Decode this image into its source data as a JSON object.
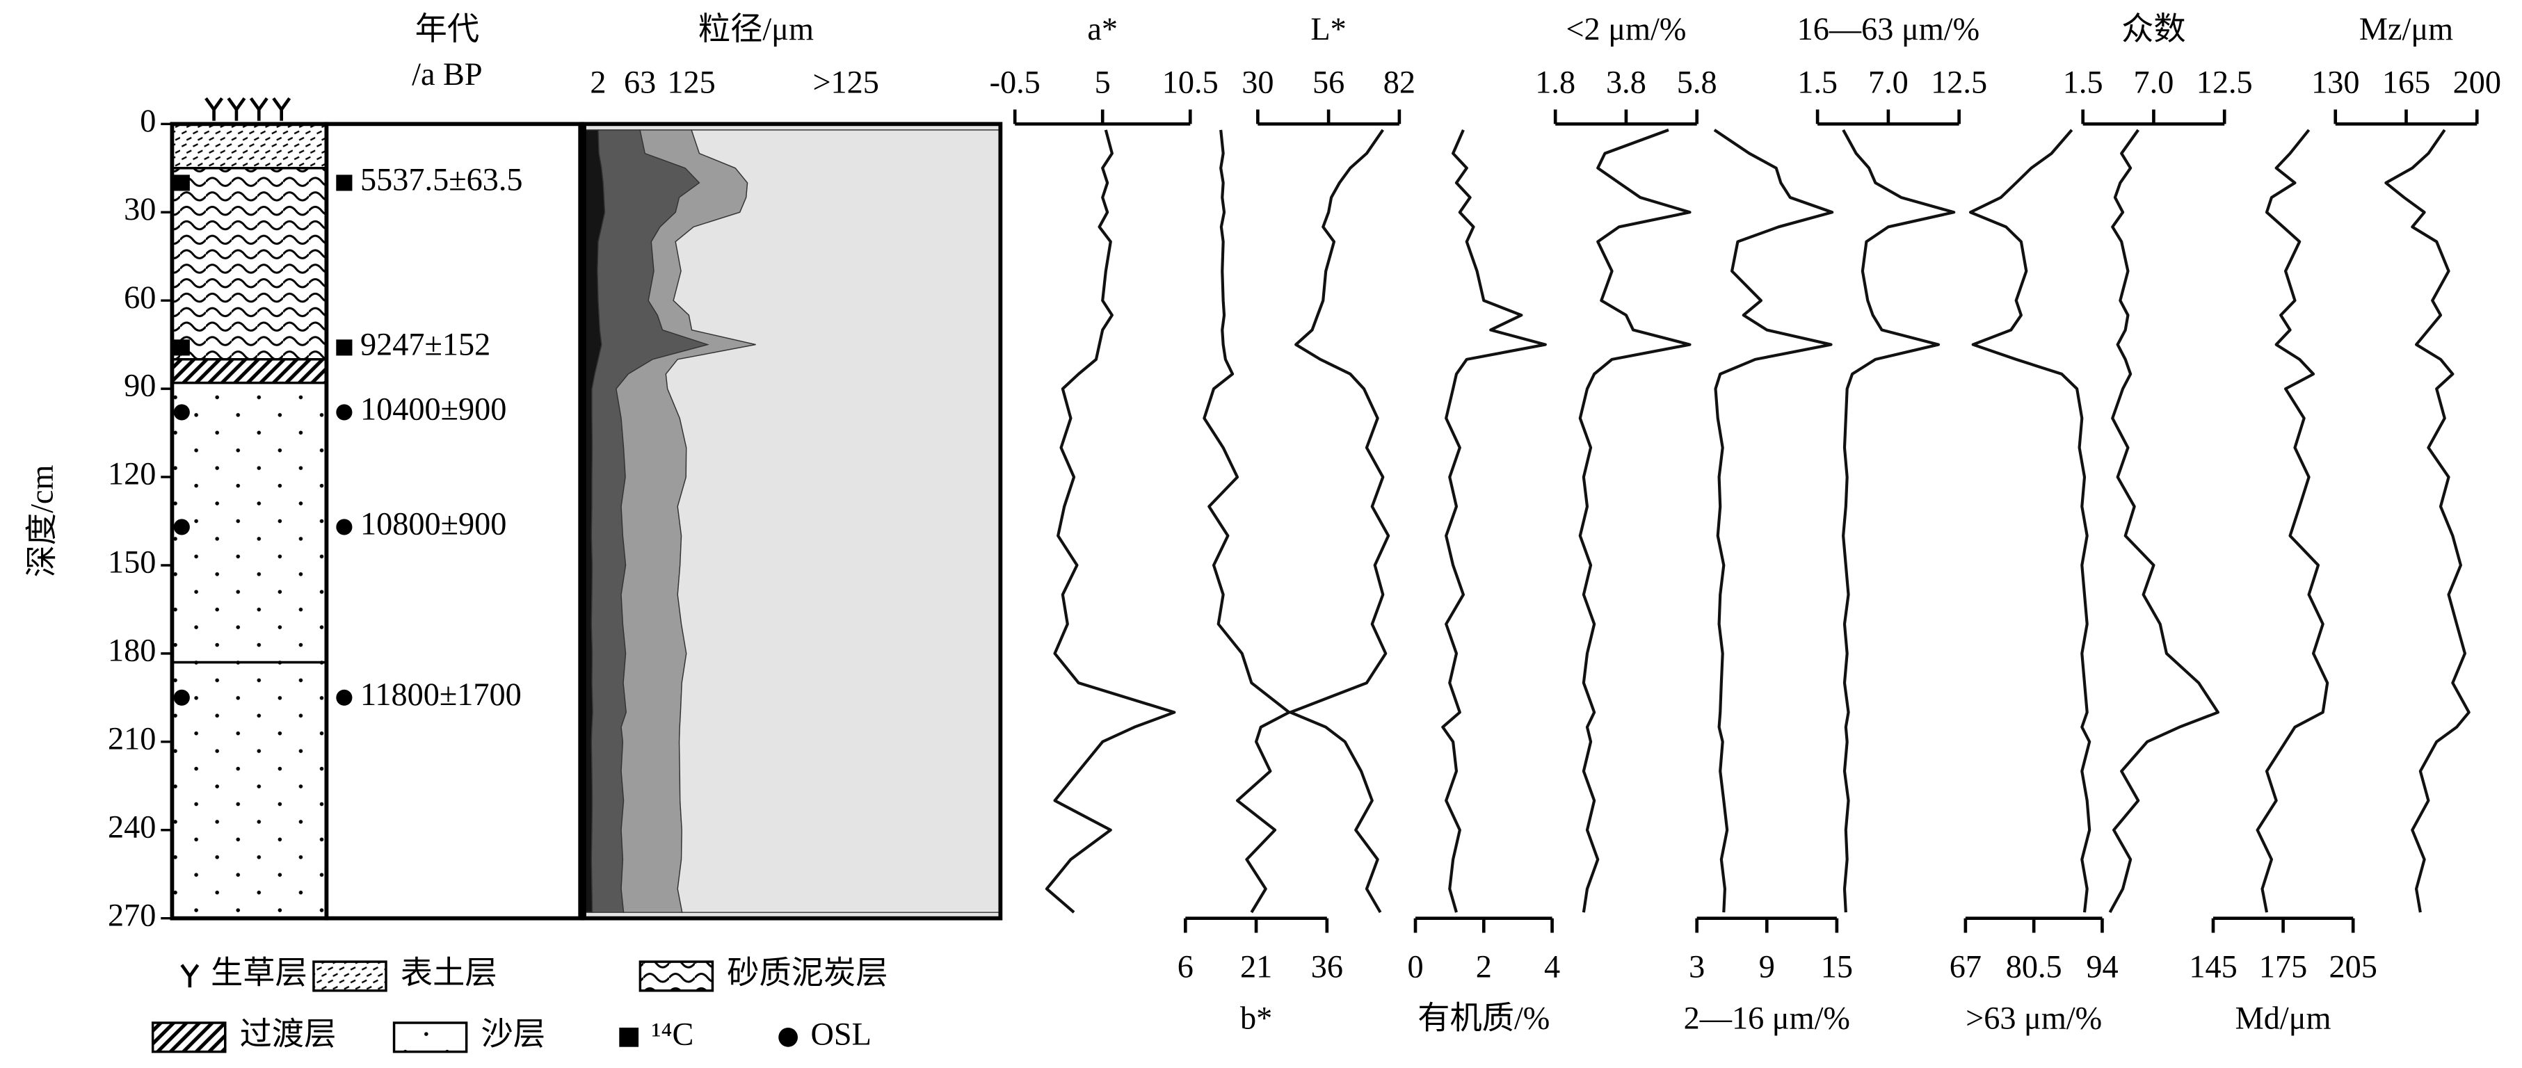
{
  "chart_data": [
    {
      "type": "lithology",
      "y_label": "深度/cm",
      "ylim": [
        270,
        0
      ],
      "yticks": [
        0,
        30,
        60,
        90,
        120,
        150,
        180,
        210,
        240,
        270
      ],
      "surface": "grass",
      "layers": [
        {
          "pattern": "topsoil",
          "top": 0,
          "bottom": 15
        },
        {
          "pattern": "peat",
          "top": 15,
          "bottom": 80
        },
        {
          "pattern": "transition",
          "top": 80,
          "bottom": 88
        },
        {
          "pattern": "sand",
          "top": 88,
          "bottom": 183
        },
        {
          "pattern": "sand",
          "top": 183,
          "bottom": 270
        }
      ],
      "legend": [
        {
          "label": "生草层",
          "symbol": "grass"
        },
        {
          "label": "表土层",
          "symbol": "topsoil"
        },
        {
          "label": "砂质泥炭层",
          "symbol": "peat"
        },
        {
          "label": "过渡层",
          "symbol": "transition"
        },
        {
          "label": "沙层",
          "symbol": "sand"
        },
        {
          "label": "¹⁴C",
          "symbol": "square"
        },
        {
          "label": "OSL",
          "symbol": "circle"
        }
      ]
    },
    {
      "type": "dates",
      "title": "年代",
      "subtitle": "/a BP",
      "ylim": [
        270,
        0
      ],
      "samples": [
        {
          "symbol": "square",
          "depth": 20,
          "label": "5537.5±63.5"
        },
        {
          "symbol": "square",
          "depth": 76,
          "label": "9247±152"
        },
        {
          "symbol": "circle",
          "depth": 98,
          "label": "10400±900"
        },
        {
          "symbol": "circle",
          "depth": 137,
          "label": "10800±900"
        },
        {
          "symbol": "circle",
          "depth": 195,
          "label": "11800±1700"
        }
      ]
    },
    {
      "type": "stacked-area",
      "title": "粒径/μm",
      "xlim": [
        0,
        100
      ],
      "ylim": [
        270,
        0
      ],
      "y": [
        2,
        10,
        15,
        20,
        25,
        30,
        35,
        40,
        50,
        60,
        65,
        70,
        75,
        80,
        85,
        90,
        100,
        110,
        120,
        130,
        140,
        150,
        160,
        170,
        180,
        190,
        200,
        205,
        210,
        220,
        230,
        240,
        250,
        260,
        268
      ],
      "series": [
        {
          "name": "2",
          "color": "#151515",
          "values": [
            3.8,
            4.0,
            4.6,
            5.0,
            5.2,
            5.4,
            4.6,
            3.8,
            3.6,
            3.8,
            4.0,
            4.2,
            4.6,
            3.8,
            3.0,
            2.3,
            2.3,
            2.4,
            2.3,
            2.3,
            2.2,
            2.4,
            2.3,
            2.2,
            2.4,
            2.3,
            2.5,
            2.3,
            2.2,
            2.3,
            2.4,
            2.3,
            2.2,
            2.3,
            2.4
          ]
        },
        {
          "name": "63",
          "color": "#585858",
          "values": [
            10.0,
            11.0,
            20.0,
            23.0,
            18.0,
            16.9,
            14.0,
            12.7,
            13.5,
            12.0,
            14.0,
            15.0,
            25.4,
            13.0,
            8.0,
            5.8,
            7.0,
            7.5,
            8.0,
            7.0,
            7.5,
            8.0,
            7.0,
            7.5,
            8.0,
            7.5,
            8.0,
            7.0,
            7.5,
            7.0,
            7.5,
            7.0,
            7.5,
            7.0,
            7.5
          ]
        },
        {
          "name": "125",
          "color": "#9c9c9c",
          "values": [
            12.3,
            13.0,
            12.0,
            11.5,
            16.0,
            15.4,
            8.0,
            5.8,
            6.5,
            6.0,
            7.5,
            7.0,
            11.5,
            6.0,
            9.0,
            12.3,
            14.0,
            15.0,
            14.5,
            13.5,
            14.0,
            13.0,
            13.5,
            14.0,
            14.5,
            14.0,
            13.0,
            14.0,
            13.5,
            14.0,
            13.5,
            14.5,
            14.0,
            13.5,
            14.0
          ]
        },
        {
          "name": ">125",
          "color": "#e4e4e4",
          "values": [
            73.9,
            72.0,
            63.4,
            60.5,
            60.8,
            62.3,
            73.4,
            77.7,
            76.4,
            78.2,
            74.5,
            73.8,
            58.5,
            77.2,
            80.0,
            79.6,
            76.7,
            75.1,
            75.2,
            77.2,
            76.3,
            76.6,
            77.2,
            76.3,
            75.1,
            76.2,
            76.5,
            76.7,
            76.8,
            76.7,
            76.6,
            76.2,
            76.3,
            77.2,
            76.1
          ]
        }
      ]
    },
    {
      "type": "line",
      "x_label": "a*",
      "axis": "top",
      "xlim": [
        -0.5,
        10.5
      ],
      "xticks": [
        -0.5,
        5,
        10.5
      ],
      "ylim": [
        270,
        0
      ],
      "y": [
        2,
        10,
        15,
        20,
        25,
        30,
        35,
        40,
        50,
        60,
        65,
        70,
        75,
        80,
        85,
        90,
        100,
        110,
        120,
        130,
        140,
        150,
        160,
        170,
        180,
        190,
        200,
        205,
        210,
        220,
        230,
        240,
        250,
        260,
        268
      ],
      "values": [
        5.2,
        5.6,
        5.0,
        5.3,
        5.0,
        5.3,
        4.8,
        5.5,
        5.2,
        5.0,
        5.6,
        5.0,
        4.8,
        4.6,
        3.5,
        2.5,
        3.0,
        2.4,
        3.2,
        2.6,
        2.2,
        3.4,
        2.5,
        2.8,
        2.0,
        3.5,
        9.5,
        7.0,
        5.0,
        3.5,
        2.0,
        5.5,
        3.0,
        1.5,
        3.2
      ]
    },
    {
      "type": "line",
      "x_label": "b*",
      "axis": "bottom",
      "xlim": [
        6,
        36
      ],
      "xticks": [
        6,
        21,
        36
      ],
      "ylim": [
        270,
        0
      ],
      "y": [
        2,
        10,
        15,
        20,
        25,
        30,
        35,
        40,
        50,
        60,
        65,
        70,
        75,
        80,
        85,
        90,
        100,
        110,
        120,
        130,
        140,
        150,
        160,
        170,
        180,
        190,
        200,
        205,
        210,
        220,
        230,
        240,
        250,
        260,
        268
      ],
      "values": [
        13.5,
        14,
        13.5,
        14,
        13.8,
        14.2,
        13.6,
        14,
        13.8,
        14,
        14.2,
        13.8,
        14,
        14.5,
        16,
        12,
        10,
        14,
        17,
        11,
        15,
        12,
        14,
        13,
        18,
        20,
        28,
        22,
        21,
        24,
        17,
        25,
        19,
        23,
        20
      ]
    },
    {
      "type": "line",
      "x_label": "L*",
      "axis": "top",
      "xlim": [
        30,
        82
      ],
      "xticks": [
        30,
        56,
        82
      ],
      "ylim": [
        270,
        0
      ],
      "y": [
        2,
        10,
        15,
        20,
        25,
        30,
        35,
        40,
        50,
        60,
        65,
        70,
        75,
        80,
        85,
        90,
        100,
        110,
        120,
        130,
        140,
        150,
        160,
        170,
        180,
        190,
        200,
        205,
        210,
        220,
        230,
        240,
        250,
        260,
        268
      ],
      "values": [
        76,
        70,
        64,
        60,
        57,
        56,
        54,
        58,
        55,
        54,
        52,
        50,
        44,
        53,
        64,
        69,
        74,
        70,
        76,
        72,
        78,
        73,
        76,
        72,
        77,
        70,
        42,
        55,
        62,
        68,
        72,
        66,
        74,
        70,
        75
      ]
    },
    {
      "type": "line",
      "x_label": "有机质/%",
      "axis": "bottom",
      "xlim": [
        0,
        4
      ],
      "xticks": [
        0,
        2,
        4
      ],
      "ylim": [
        270,
        0
      ],
      "y": [
        2,
        10,
        15,
        20,
        25,
        30,
        35,
        40,
        50,
        60,
        65,
        70,
        75,
        80,
        85,
        90,
        100,
        110,
        120,
        130,
        140,
        150,
        160,
        170,
        180,
        190,
        200,
        205,
        210,
        220,
        230,
        240,
        250,
        260,
        268
      ],
      "values": [
        1.4,
        1.1,
        1.5,
        1.2,
        1.6,
        1.3,
        1.7,
        1.5,
        1.8,
        2.0,
        3.1,
        2.2,
        3.8,
        1.5,
        1.2,
        1.1,
        0.9,
        1.3,
        1.0,
        1.2,
        0.9,
        1.1,
        1.4,
        0.9,
        1.2,
        1.0,
        1.3,
        0.8,
        1.1,
        1.2,
        0.9,
        1.3,
        1.1,
        1.0,
        1.2
      ]
    },
    {
      "type": "line",
      "x_label": "<2 μm/%",
      "axis": "top",
      "xlim": [
        1.8,
        5.8
      ],
      "xticks": [
        1.8,
        3.8,
        5.8
      ],
      "ylim": [
        270,
        0
      ],
      "y": [
        2,
        10,
        15,
        20,
        25,
        30,
        35,
        40,
        50,
        60,
        65,
        70,
        75,
        80,
        85,
        90,
        100,
        110,
        120,
        130,
        140,
        150,
        160,
        170,
        180,
        190,
        200,
        205,
        210,
        220,
        230,
        240,
        250,
        260,
        268
      ],
      "values": [
        5.0,
        3.2,
        3.0,
        3.6,
        4.2,
        5.6,
        3.6,
        3.0,
        3.4,
        3.1,
        3.8,
        4.0,
        5.6,
        3.4,
        2.9,
        2.7,
        2.5,
        2.8,
        2.6,
        2.7,
        2.5,
        2.8,
        2.6,
        2.9,
        2.7,
        2.6,
        2.9,
        2.7,
        2.8,
        2.6,
        2.9,
        2.7,
        3.0,
        2.7,
        2.6
      ]
    },
    {
      "type": "line",
      "x_label": "2—16 μm/%",
      "axis": "bottom",
      "xlim": [
        3,
        15
      ],
      "xticks": [
        3,
        9,
        15
      ],
      "ylim": [
        270,
        0
      ],
      "y": [
        2,
        10,
        15,
        20,
        25,
        30,
        35,
        40,
        50,
        60,
        65,
        70,
        75,
        80,
        85,
        90,
        100,
        110,
        120,
        130,
        140,
        150,
        160,
        170,
        180,
        190,
        200,
        205,
        210,
        220,
        230,
        240,
        250,
        260,
        268
      ],
      "values": [
        4.5,
        7.5,
        9.8,
        10.2,
        11,
        14.6,
        10,
        6.5,
        6.0,
        8.5,
        7.0,
        9.0,
        14.5,
        8.0,
        5.0,
        4.6,
        4.8,
        5.2,
        4.9,
        5.0,
        4.8,
        5.3,
        5.0,
        4.9,
        5.2,
        5.1,
        5.0,
        4.9,
        5.2,
        5.0,
        5.3,
        5.6,
        5.1,
        5.4,
        5.3
      ]
    },
    {
      "type": "line",
      "x_label": "16—63 μm/%",
      "axis": "top",
      "xlim": [
        1.5,
        12.5
      ],
      "xticks": [
        1.5,
        {
          "value": 7,
          "label": "7.0"
        },
        12.5
      ],
      "ylim": [
        270,
        0
      ],
      "y": [
        2,
        10,
        15,
        20,
        25,
        30,
        35,
        40,
        50,
        60,
        65,
        70,
        75,
        80,
        85,
        90,
        100,
        110,
        120,
        130,
        140,
        150,
        160,
        170,
        180,
        190,
        200,
        205,
        210,
        220,
        230,
        240,
        250,
        260,
        268
      ],
      "values": [
        3.5,
        4.5,
        5.5,
        6.0,
        8.0,
        12.1,
        7.0,
        5.3,
        5.0,
        5.4,
        5.8,
        6.5,
        10.9,
        6.0,
        4.2,
        3.8,
        3.7,
        3.6,
        3.8,
        3.7,
        3.5,
        3.7,
        3.9,
        3.6,
        3.8,
        3.6,
        3.9,
        3.7,
        3.8,
        3.6,
        3.9,
        3.7,
        3.8,
        3.6,
        3.7
      ]
    },
    {
      "type": "line",
      "x_label": ">63 μm/%",
      "axis": "bottom",
      "xlim": [
        67,
        94
      ],
      "xticks": [
        67,
        80.5,
        94
      ],
      "ylim": [
        270,
        0
      ],
      "y": [
        2,
        10,
        15,
        20,
        25,
        30,
        35,
        40,
        50,
        60,
        65,
        70,
        75,
        80,
        85,
        90,
        100,
        110,
        120,
        130,
        140,
        150,
        160,
        170,
        180,
        190,
        200,
        205,
        210,
        220,
        230,
        240,
        250,
        260,
        268
      ],
      "values": [
        88,
        84,
        80,
        77,
        74,
        68,
        75,
        78,
        79,
        77,
        78,
        76,
        68.5,
        77,
        86,
        89,
        90,
        89.5,
        90.5,
        90,
        91,
        90,
        90.5,
        91,
        90,
        90.5,
        91,
        90,
        91.5,
        90,
        91,
        91.5,
        90,
        91,
        90.5
      ]
    },
    {
      "type": "line",
      "x_label": "众数",
      "axis": "top",
      "xlim": [
        1.5,
        12.5
      ],
      "xticks": [
        1.5,
        {
          "value": 7,
          "label": "7.0"
        },
        12.5
      ],
      "ylim": [
        270,
        0
      ],
      "y": [
        2,
        10,
        15,
        20,
        25,
        30,
        35,
        40,
        50,
        60,
        65,
        70,
        75,
        80,
        85,
        90,
        100,
        110,
        120,
        130,
        140,
        150,
        160,
        170,
        180,
        190,
        200,
        205,
        210,
        220,
        230,
        240,
        250,
        260,
        268
      ],
      "values": [
        5.8,
        4.5,
        5.2,
        4.4,
        4.0,
        4.6,
        3.8,
        4.5,
        5.0,
        4.4,
        5.0,
        4.8,
        4.2,
        4.8,
        5.2,
        4.6,
        3.8,
        5.0,
        4.2,
        5.5,
        4.8,
        7.0,
        6.2,
        7.5,
        8.0,
        10.5,
        12.0,
        9.0,
        6.5,
        4.5,
        5.8,
        3.9,
        5.2,
        4.6,
        3.6
      ]
    },
    {
      "type": "line",
      "x_label": "Md/μm",
      "axis": "bottom",
      "xlim": [
        145,
        205
      ],
      "xticks": [
        145,
        175,
        205
      ],
      "ylim": [
        270,
        0
      ],
      "y": [
        2,
        10,
        15,
        20,
        25,
        30,
        35,
        40,
        50,
        60,
        65,
        70,
        75,
        80,
        85,
        90,
        100,
        110,
        120,
        130,
        140,
        150,
        160,
        170,
        180,
        190,
        200,
        205,
        210,
        220,
        230,
        240,
        250,
        260,
        268
      ],
      "values": [
        186,
        178,
        172,
        180,
        170,
        168,
        175,
        182,
        176,
        180,
        174,
        178,
        172,
        182,
        188,
        176,
        184,
        180,
        186,
        182,
        178,
        190,
        186,
        192,
        188,
        194,
        192,
        180,
        176,
        168,
        172,
        164,
        170,
        166,
        168
      ]
    },
    {
      "type": "line",
      "x_label": "Mz/μm",
      "axis": "top",
      "xlim": [
        130,
        200
      ],
      "xticks": [
        130,
        165,
        200
      ],
      "ylim": [
        270,
        0
      ],
      "y": [
        2,
        10,
        15,
        20,
        25,
        30,
        35,
        40,
        50,
        60,
        65,
        70,
        75,
        80,
        85,
        90,
        100,
        110,
        120,
        130,
        140,
        150,
        160,
        170,
        180,
        190,
        200,
        205,
        210,
        220,
        230,
        240,
        250,
        260,
        268
      ],
      "values": [
        184,
        176,
        168,
        155,
        164,
        174,
        168,
        180,
        186,
        178,
        182,
        176,
        170,
        182,
        188,
        180,
        184,
        176,
        186,
        182,
        188,
        192,
        186,
        190,
        194,
        188,
        196,
        190,
        180,
        172,
        176,
        168,
        174,
        170,
        172
      ]
    }
  ]
}
